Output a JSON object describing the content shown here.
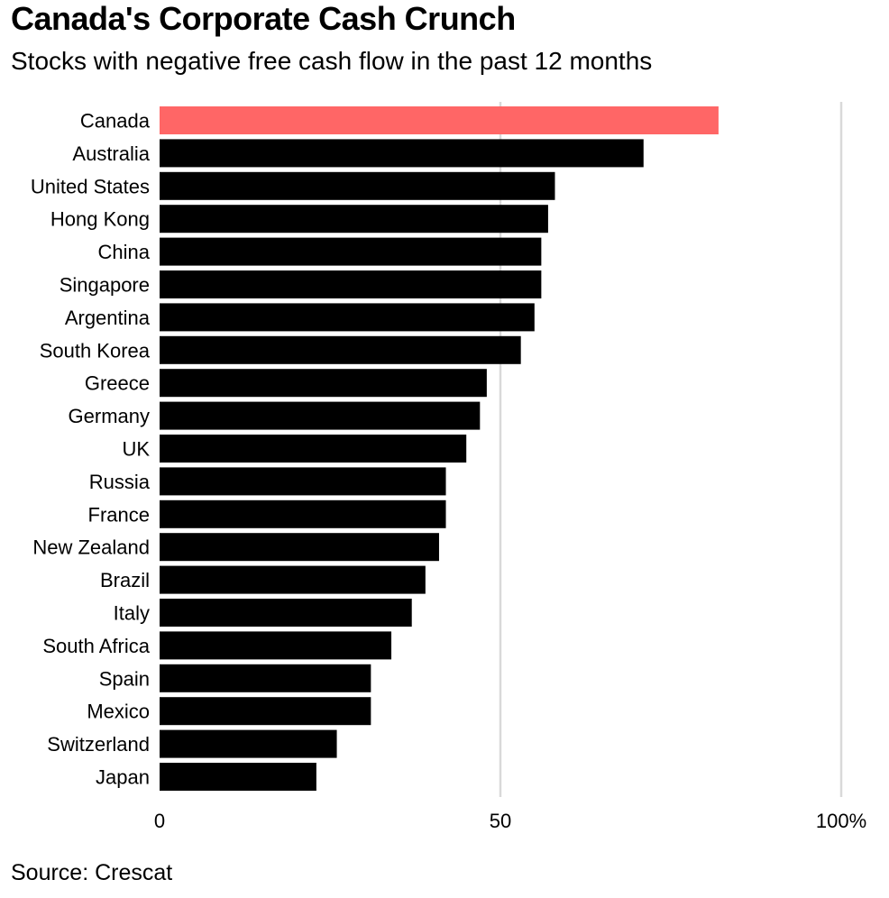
{
  "title": "Canada's Corporate Cash Crunch",
  "subtitle": "Stocks with negative free cash flow in the past 12 months",
  "source": "Source: Crescat",
  "colors": {
    "highlight": "#ff6666",
    "bar": "#000000",
    "grid": "#d9d9d9",
    "text": "#000000"
  },
  "chart_data": {
    "type": "bar",
    "orientation": "horizontal",
    "title": "Canada's Corporate Cash Crunch",
    "subtitle": "Stocks with negative free cash flow in the past 12 months",
    "xlabel": "",
    "ylabel": "",
    "xlim": [
      0,
      100
    ],
    "unit": "%",
    "grid": true,
    "highlight_category": "Canada",
    "ticks": [
      {
        "value": 0,
        "label": "0"
      },
      {
        "value": 50,
        "label": "50"
      },
      {
        "value": 100,
        "label": "100%"
      }
    ],
    "categories": [
      "Canada",
      "Australia",
      "United States",
      "Hong Kong",
      "China",
      "Singapore",
      "Argentina",
      "South Korea",
      "Greece",
      "Germany",
      "UK",
      "Russia",
      "France",
      "New Zealand",
      "Brazil",
      "Italy",
      "South Africa",
      "Spain",
      "Mexico",
      "Switzerland",
      "Japan"
    ],
    "values": [
      82,
      71,
      58,
      57,
      56,
      56,
      55,
      53,
      48,
      47,
      45,
      42,
      42,
      41,
      39,
      37,
      34,
      31,
      31,
      26,
      23
    ]
  }
}
